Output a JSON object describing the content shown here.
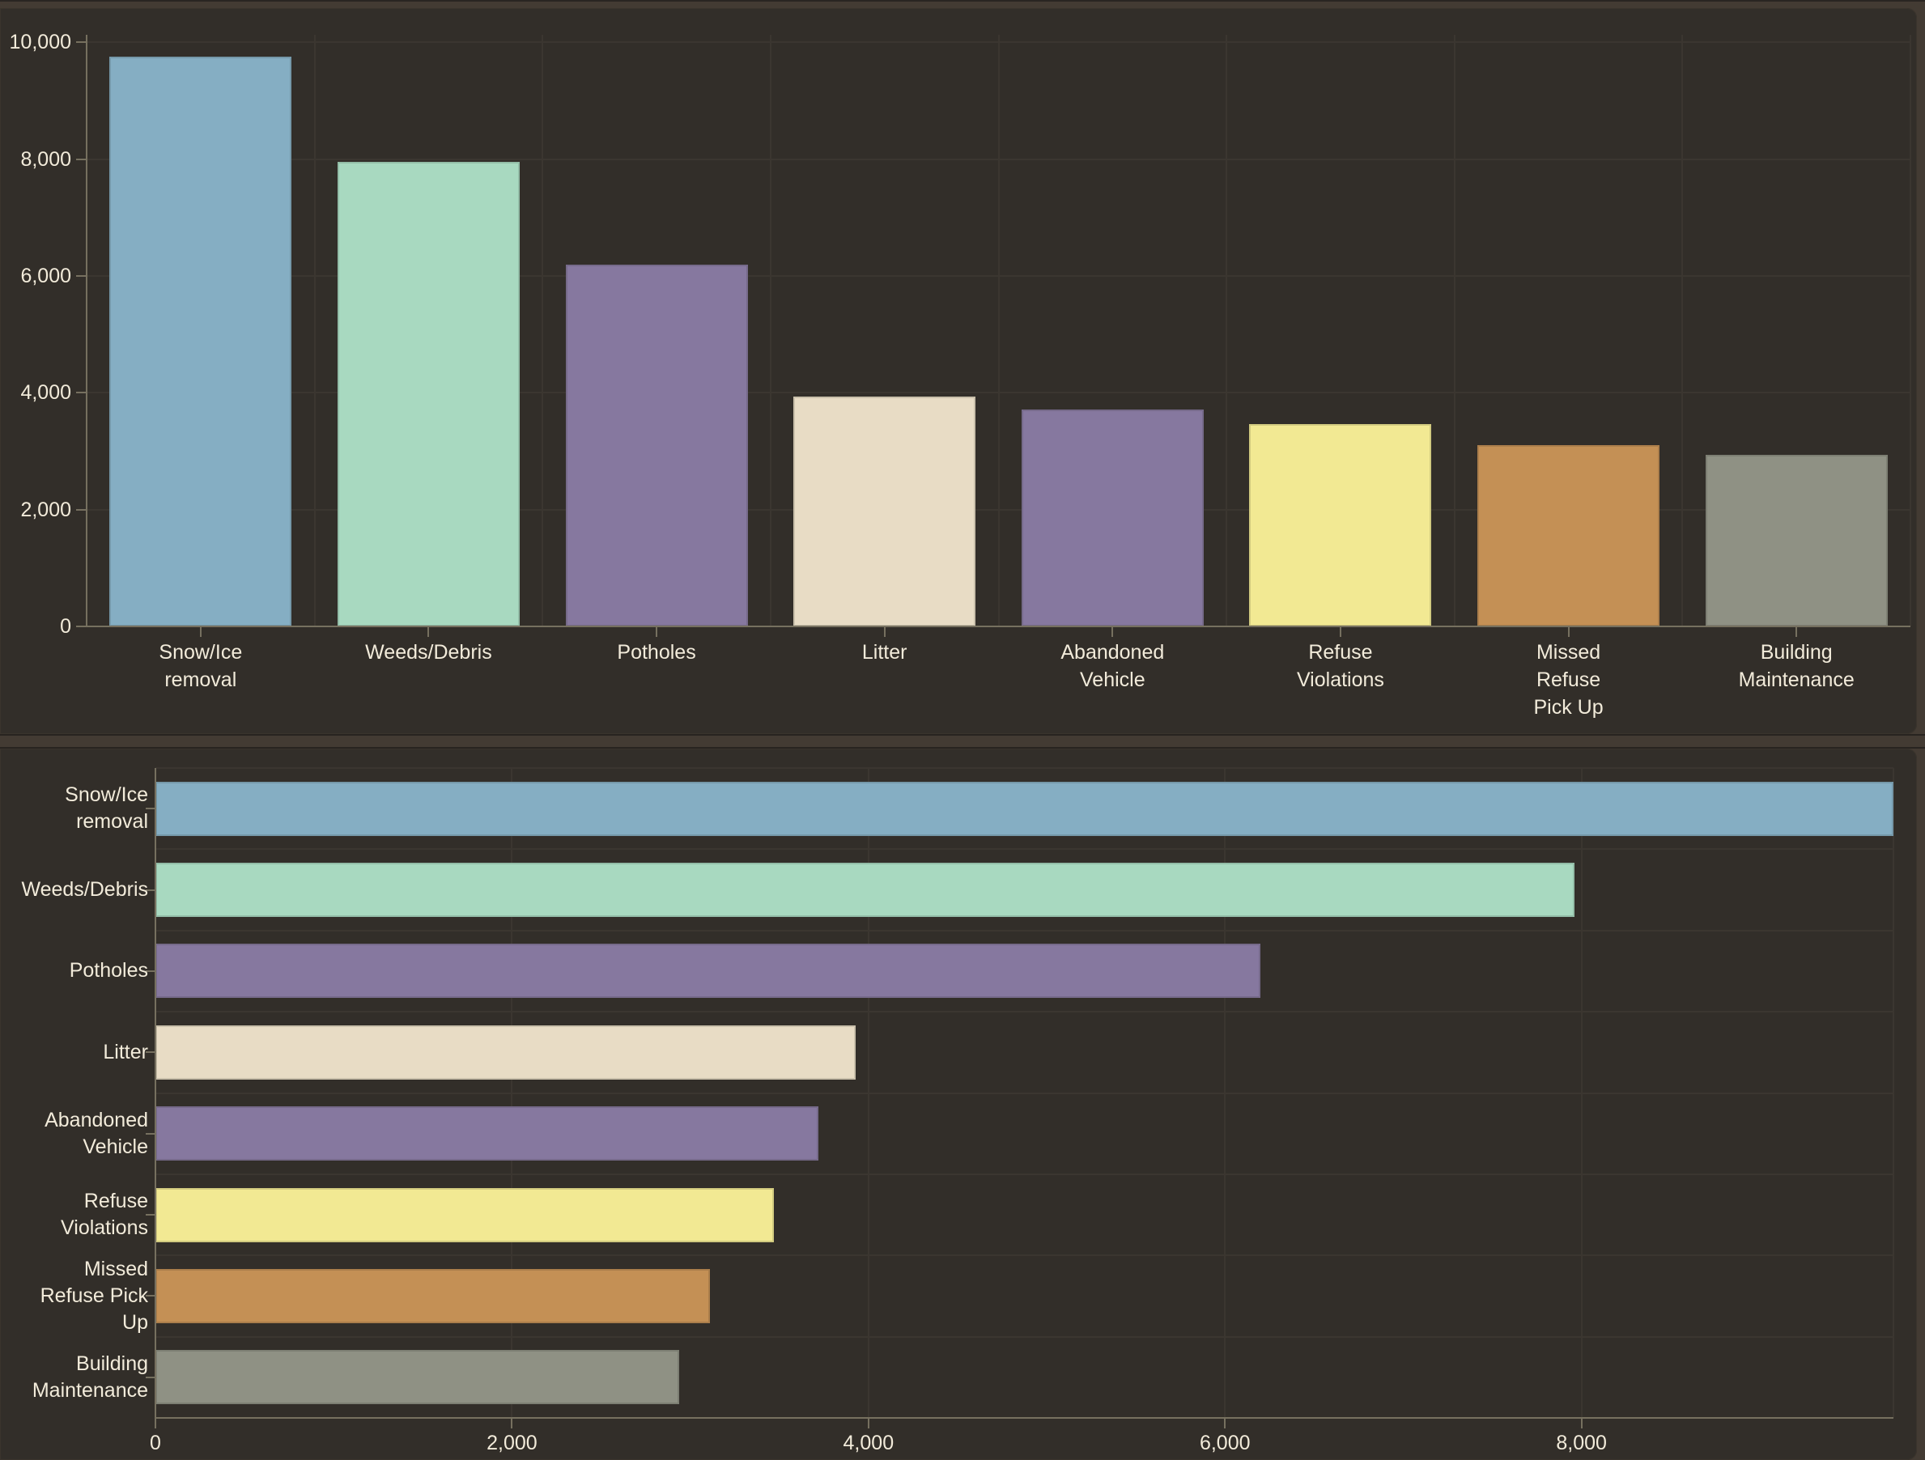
{
  "theme": {
    "page_background": "#433b33",
    "panel_background": "#322e29",
    "divider_color": "#433b33",
    "divider_edge_color": "#282420",
    "gridline_color": "#3b3630",
    "axis_line_color": "#76705f",
    "text_color": "#f2ebda"
  },
  "chart_data": [
    {
      "type": "bar",
      "orientation": "vertical",
      "title": "",
      "xlabel": "",
      "ylabel": "",
      "legend": false,
      "grid": true,
      "categories": [
        "Snow/Ice removal",
        "Weeds/Debris",
        "Potholes",
        "Litter",
        "Abandoned Vehicle",
        "Refuse Violations",
        "Missed Refuse Pick Up",
        "Building Maintenance"
      ],
      "values": [
        9750,
        7960,
        6200,
        3930,
        3720,
        3470,
        3110,
        2940
      ],
      "bar_colors": [
        "#85aec3",
        "#a8d9c0",
        "#86789f",
        "#e8dcc5",
        "#86789f",
        "#f2e993",
        "#c49055",
        "#8f9184"
      ],
      "ylim": [
        0,
        10000
      ],
      "yticks": [
        0,
        2000,
        4000,
        6000,
        8000,
        10000
      ],
      "ytick_labels": [
        "0",
        "2,000",
        "4,000",
        "6,000",
        "8,000",
        "10,000"
      ],
      "category_label_lines": [
        [
          "Snow/Ice",
          "removal"
        ],
        [
          "Weeds/Debris"
        ],
        [
          "Potholes"
        ],
        [
          "Litter"
        ],
        [
          "Abandoned",
          "Vehicle"
        ],
        [
          "Refuse",
          "Violations"
        ],
        [
          "Missed",
          "Refuse",
          "Pick Up"
        ],
        [
          "Building",
          "Maintenance"
        ]
      ]
    },
    {
      "type": "bar",
      "orientation": "horizontal",
      "title": "",
      "xlabel": "",
      "ylabel": "",
      "legend": false,
      "grid": true,
      "categories": [
        "Snow/Ice removal",
        "Weeds/Debris",
        "Potholes",
        "Litter",
        "Abandoned Vehicle",
        "Refuse Violations",
        "Missed Refuse Pick Up",
        "Building Maintenance"
      ],
      "values": [
        9750,
        7960,
        6200,
        3930,
        3720,
        3470,
        3110,
        2940
      ],
      "bar_colors": [
        "#85aec3",
        "#a8d9c0",
        "#86789f",
        "#e8dcc5",
        "#86789f",
        "#f2e993",
        "#c49055",
        "#8f9184"
      ],
      "xlim": [
        0,
        9750
      ],
      "xticks": [
        0,
        2000,
        4000,
        6000,
        8000
      ],
      "xtick_labels": [
        "0",
        "2,000",
        "4,000",
        "6,000",
        "8,000"
      ],
      "category_label_lines": [
        [
          "Snow/Ice",
          "removal"
        ],
        [
          "Weeds/Debris"
        ],
        [
          "Potholes"
        ],
        [
          "Litter"
        ],
        [
          "Abandoned",
          "Vehicle"
        ],
        [
          "Refuse",
          "Violations"
        ],
        [
          "Missed",
          "Refuse Pick",
          "Up"
        ],
        [
          "Building",
          "Maintenance"
        ]
      ]
    }
  ]
}
